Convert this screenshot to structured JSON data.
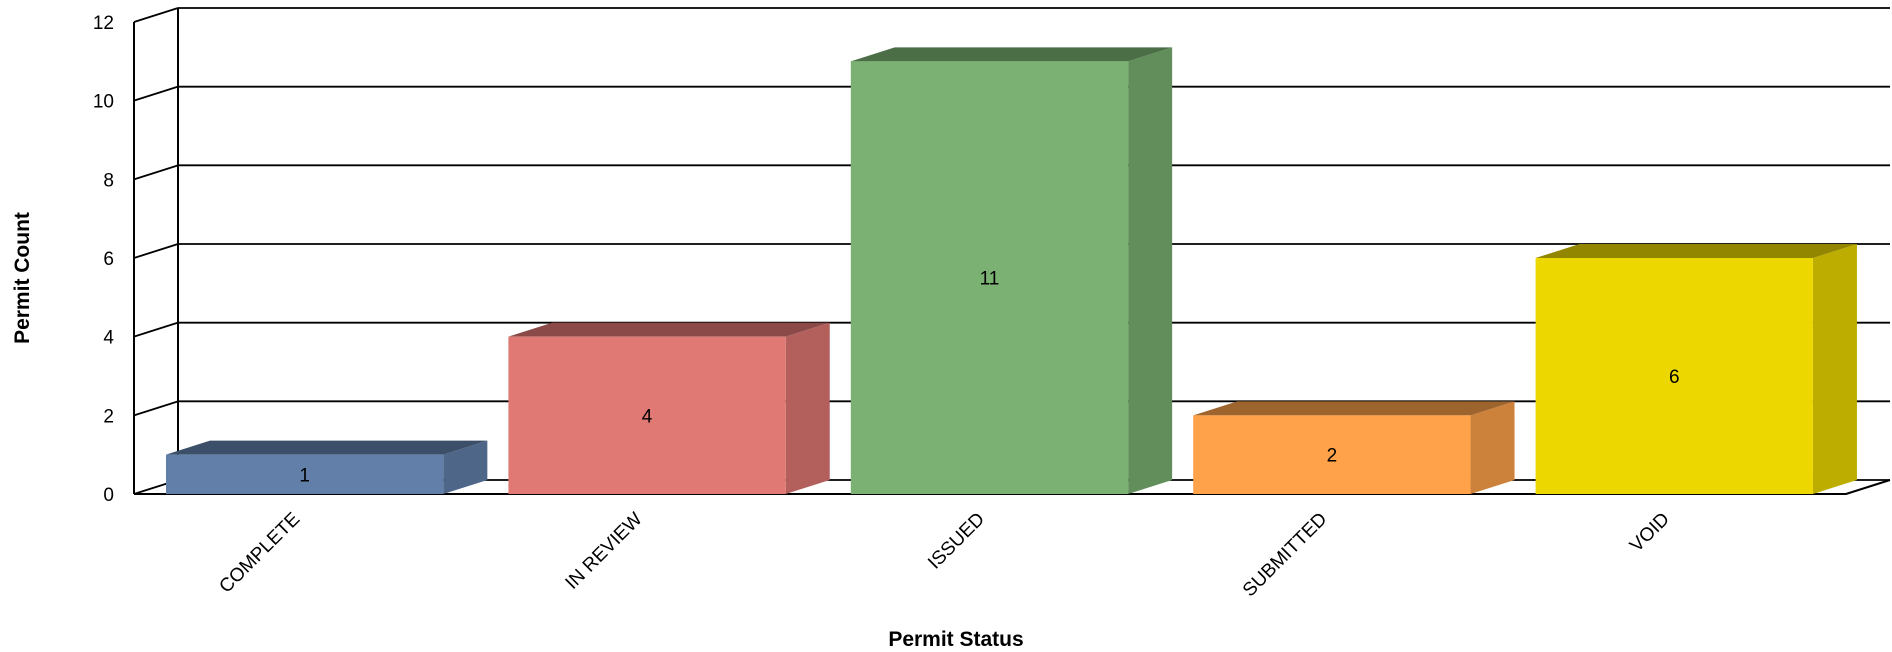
{
  "chart_data": {
    "type": "bar",
    "title": "",
    "xlabel": "Permit Status",
    "ylabel": "Permit Count",
    "categories": [
      "COMPLETE",
      "IN REVIEW",
      "ISSUED",
      "SUBMITTED",
      "VOID"
    ],
    "values": [
      1,
      4,
      11,
      2,
      6
    ],
    "ylim": [
      0,
      12
    ],
    "yticks": [
      0,
      2,
      4,
      6,
      8,
      10,
      12
    ],
    "grid": true,
    "legend": "none",
    "style": "3d-column",
    "colors": [
      "#617fa9",
      "#e07873",
      "#7bb173",
      "#ffa24a",
      "#ecd800"
    ]
  }
}
